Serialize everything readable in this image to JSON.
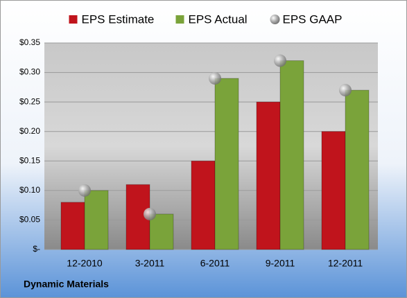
{
  "chart_data": {
    "type": "bar",
    "title": "Dynamic Materials",
    "categories": [
      "12-2010",
      "3-2011",
      "6-2011",
      "9-2011",
      "12-2011"
    ],
    "series": [
      {
        "name": "EPS Estimate",
        "color": "#c0141c",
        "values": [
          0.08,
          0.11,
          0.15,
          0.25,
          0.2
        ]
      },
      {
        "name": "EPS Actual",
        "color": "#7aa33a",
        "values": [
          0.1,
          0.06,
          0.29,
          0.32,
          0.27
        ]
      },
      {
        "name": "EPS GAAP",
        "color": "#a6a6a6",
        "type": "scatter",
        "values": [
          0.1,
          0.06,
          0.29,
          0.32,
          0.27
        ]
      }
    ],
    "ylim": [
      0,
      0.35
    ],
    "yticks": [
      {
        "value": 0,
        "label": "$-"
      },
      {
        "value": 0.05,
        "label": "$0.05"
      },
      {
        "value": 0.1,
        "label": "$0.10"
      },
      {
        "value": 0.15,
        "label": "$0.15"
      },
      {
        "value": 0.2,
        "label": "$0.20"
      },
      {
        "value": 0.25,
        "label": "$0.25"
      },
      {
        "value": 0.3,
        "label": "$0.30"
      },
      {
        "value": 0.35,
        "label": "$0.35"
      }
    ],
    "grid": true,
    "legend": "top"
  }
}
